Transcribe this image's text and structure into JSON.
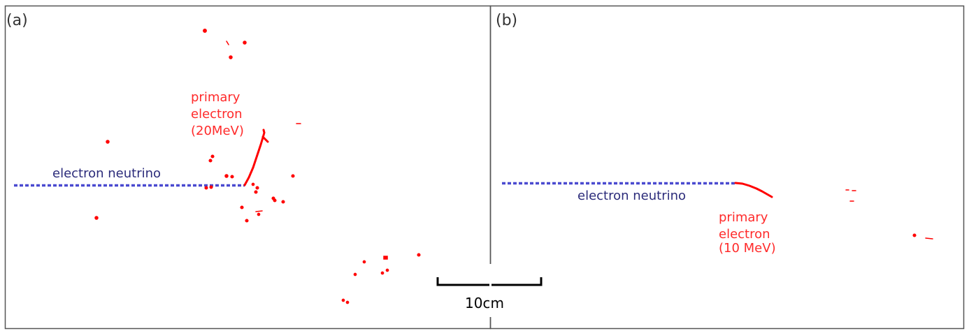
{
  "colors": {
    "frame": "#555555",
    "neutrino": "#4a4ad0",
    "neutrino_text": "#2b2b7a",
    "electron": "#ff0000",
    "electron_text": "#ff2a2a",
    "scale": "#000000"
  },
  "panels": [
    {
      "label": "(a)",
      "neutrino_label": "electron neutrino",
      "electron_label_lines": [
        "primary",
        "electron",
        "(20MeV)"
      ]
    },
    {
      "label": "(b)",
      "neutrino_label": "electron neutrino",
      "electron_label_lines": [
        "primary",
        "electron",
        "(10 MeV)"
      ]
    }
  ],
  "scale_bar": {
    "label": "10cm"
  }
}
